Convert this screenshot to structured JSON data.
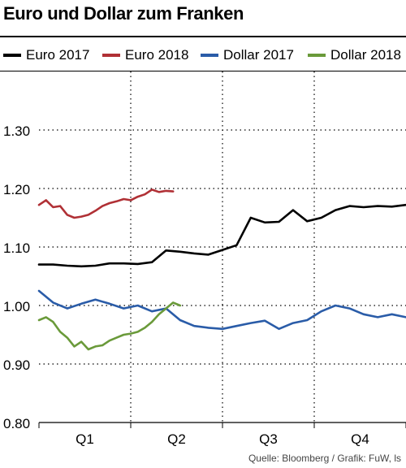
{
  "title": "Euro und Dollar zum Franken",
  "source": "Quelle: Bloomberg / Grafik: FuW, ls",
  "chart_data": {
    "type": "line",
    "ylim": [
      0.8,
      1.4
    ],
    "yticks": [
      0.8,
      0.9,
      1.0,
      1.1,
      1.2,
      1.3
    ],
    "ytick_labels": [
      "0.80",
      "0.90",
      "1.00",
      "1.10",
      "1.20",
      "1.30"
    ],
    "xlim": [
      0,
      52
    ],
    "quarters": [
      "Q1",
      "Q2",
      "Q3",
      "Q4"
    ],
    "grid": true,
    "legend_position": "top",
    "series": [
      {
        "name": "Euro 2017",
        "color": "#000000",
        "x": [
          0,
          2,
          4,
          6,
          8,
          10,
          12,
          14,
          16,
          18,
          20,
          22,
          24,
          26,
          28,
          30,
          32,
          34,
          36,
          38,
          40,
          42,
          44,
          46,
          48,
          50,
          52
        ],
        "values": [
          1.07,
          1.07,
          1.068,
          1.067,
          1.068,
          1.072,
          1.072,
          1.071,
          1.074,
          1.094,
          1.092,
          1.089,
          1.087,
          1.095,
          1.103,
          1.15,
          1.142,
          1.143,
          1.163,
          1.144,
          1.15,
          1.163,
          1.17,
          1.168,
          1.17,
          1.169,
          1.172
        ]
      },
      {
        "name": "Euro 2018",
        "color": "#b03035",
        "x": [
          0,
          1,
          2,
          3,
          4,
          5,
          6,
          7,
          8,
          9,
          10,
          11,
          12,
          13,
          14,
          15,
          16,
          17,
          18,
          19
        ],
        "values": [
          1.172,
          1.18,
          1.168,
          1.17,
          1.155,
          1.15,
          1.152,
          1.155,
          1.162,
          1.17,
          1.175,
          1.178,
          1.182,
          1.18,
          1.186,
          1.19,
          1.198,
          1.194,
          1.196,
          1.195
        ]
      },
      {
        "name": "Dollar 2017",
        "color": "#2a5ca8",
        "x": [
          0,
          2,
          4,
          6,
          8,
          10,
          12,
          14,
          16,
          18,
          20,
          22,
          24,
          26,
          28,
          30,
          32,
          34,
          36,
          38,
          40,
          42,
          44,
          46,
          48,
          50,
          52
        ],
        "values": [
          1.025,
          1.005,
          0.995,
          1.003,
          1.01,
          1.003,
          0.995,
          1.0,
          0.99,
          0.995,
          0.975,
          0.965,
          0.962,
          0.96,
          0.965,
          0.97,
          0.974,
          0.96,
          0.97,
          0.975,
          0.99,
          1.0,
          0.995,
          0.985,
          0.98,
          0.985,
          0.98
        ]
      },
      {
        "name": "Dollar 2018",
        "color": "#6a9a3a",
        "x": [
          0,
          1,
          2,
          3,
          4,
          5,
          6,
          7,
          8,
          9,
          10,
          11,
          12,
          13,
          14,
          15,
          16,
          17,
          18,
          19,
          20
        ],
        "values": [
          0.975,
          0.98,
          0.972,
          0.955,
          0.945,
          0.93,
          0.938,
          0.925,
          0.93,
          0.932,
          0.94,
          0.945,
          0.95,
          0.952,
          0.955,
          0.962,
          0.972,
          0.985,
          0.995,
          1.005,
          1.0
        ]
      }
    ]
  }
}
